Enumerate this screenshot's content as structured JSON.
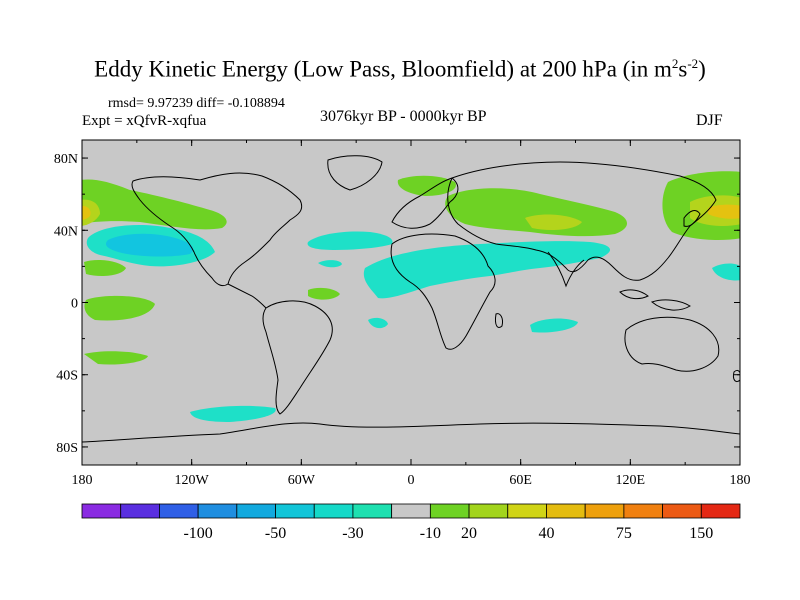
{
  "title": {
    "main": "Eddy Kinetic Energy (Low Pass, Bloomfield) at 200 hPa (in m",
    "sup1": "2",
    "mid": "s",
    "sup2": "-2",
    "end": ")"
  },
  "stats": {
    "rmsd_diff": "rmsd= 9.97239 diff= -0.108894",
    "expt": "Expt = xQfvR-xqfua"
  },
  "center_label": "3076kyr BP - 0000kyr BP",
  "season": "DJF",
  "lat_ticks": [
    {
      "label": "80N",
      "lat": 80
    },
    {
      "label": "40N",
      "lat": 40
    },
    {
      "label": "0",
      "lat": 0
    },
    {
      "label": "40S",
      "lat": -40
    },
    {
      "label": "80S",
      "lat": -80
    }
  ],
  "lon_ticks": [
    {
      "label": "180",
      "lon": -180
    },
    {
      "label": "120W",
      "lon": -120
    },
    {
      "label": "60W",
      "lon": -60
    },
    {
      "label": "0",
      "lon": 0
    },
    {
      "label": "60E",
      "lon": 60
    },
    {
      "label": "120E",
      "lon": 120
    },
    {
      "label": "180",
      "lon": 180
    }
  ],
  "colorbar": {
    "colors": [
      "#8a2be2",
      "#5a2fe0",
      "#2f5fe6",
      "#1f8ee0",
      "#12a9de",
      "#12c5d8",
      "#15d9c8",
      "#1ee0b0",
      "#c8c8c8",
      "#6ed224",
      "#a2d41c",
      "#d0d416",
      "#e4bc10",
      "#eea00c",
      "#f08010",
      "#ec5a14",
      "#e42814"
    ],
    "labels": [
      {
        "text": "-100",
        "index": 2
      },
      {
        "text": "-50",
        "index": 4
      },
      {
        "text": "-30",
        "index": 6
      },
      {
        "text": "-10",
        "index": 8
      },
      {
        "text": "20",
        "index": 9
      },
      {
        "text": "40",
        "index": 11
      },
      {
        "text": "75",
        "index": 13
      },
      {
        "text": "150",
        "index": 15
      }
    ]
  },
  "palette": {
    "background": "#c8c8c8",
    "negative": "#1ee0c8",
    "negative_strong": "#12c5e0",
    "positive": "#6ed224",
    "positive_mid": "#b4d41c",
    "positive_strong": "#e4c210",
    "coast": "#000000"
  }
}
